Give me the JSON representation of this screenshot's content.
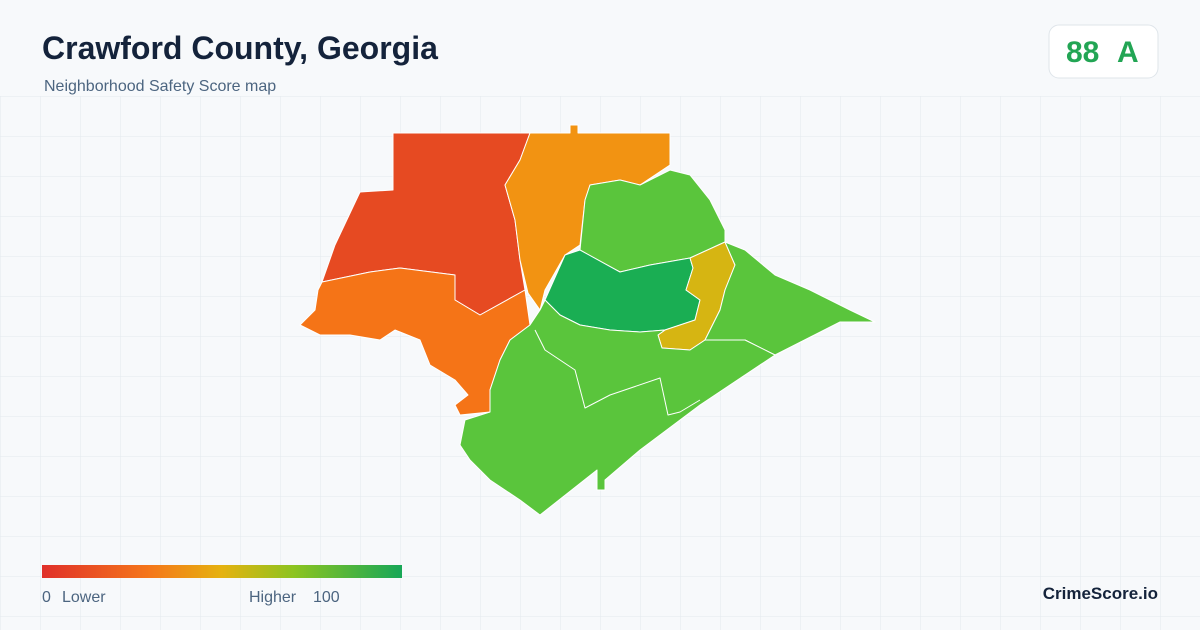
{
  "header": {
    "title": "Crawford County, Georgia",
    "subtitle": "Neighborhood Safety Score map"
  },
  "score": {
    "value": 88,
    "grade": "A"
  },
  "legend": {
    "min": 0,
    "min_label": "Lower",
    "max_label": "Higher",
    "max": 100
  },
  "brand": "CrimeScore.io"
}
